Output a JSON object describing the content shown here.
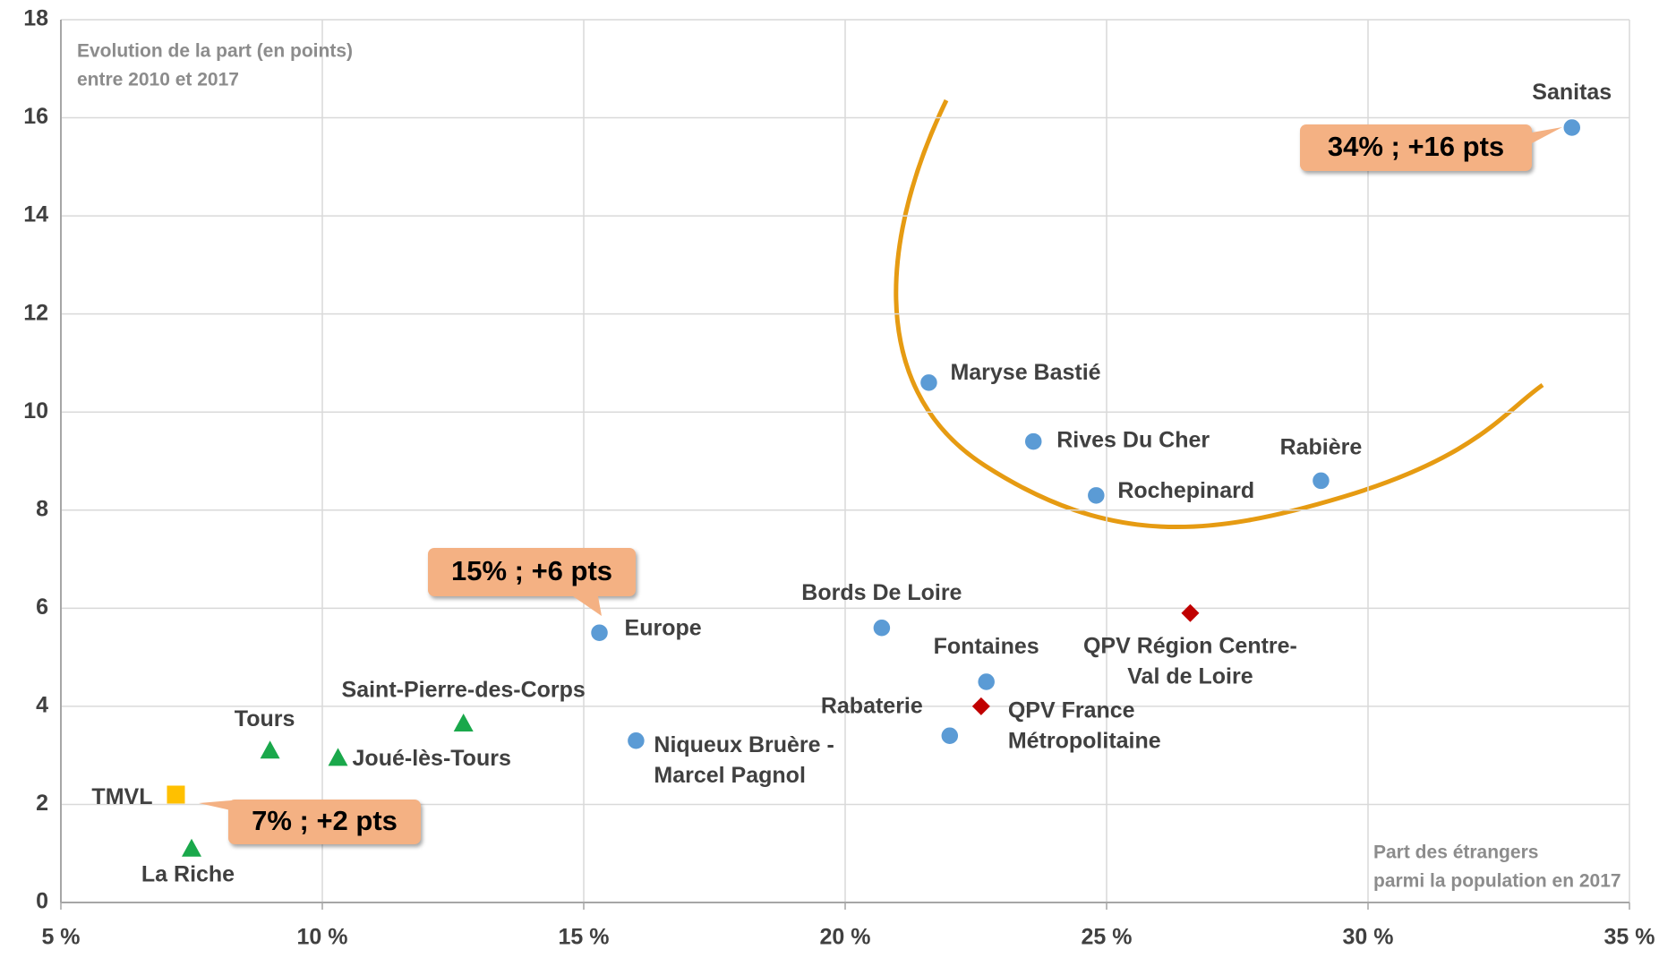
{
  "chart_data": {
    "type": "scatter",
    "y_axis_label": [
      "Evolution de la part (en points)",
      "entre 2010 et 2017"
    ],
    "x_axis_label": [
      "Part des étrangers",
      "parmi la population en 2017"
    ],
    "xlim": [
      5,
      35
    ],
    "ylim": [
      0,
      18
    ],
    "xticks": [
      {
        "value": 5,
        "label": "5 %"
      },
      {
        "value": 10,
        "label": "10 %"
      },
      {
        "value": 15,
        "label": "15 %"
      },
      {
        "value": 20,
        "label": "20 %"
      },
      {
        "value": 25,
        "label": "25 %"
      },
      {
        "value": 30,
        "label": "30 %"
      },
      {
        "value": 35,
        "label": "35 %"
      }
    ],
    "yticks": [
      0,
      2,
      4,
      6,
      8,
      10,
      12,
      14,
      16,
      18
    ],
    "grid": true,
    "series": [
      {
        "marker": "circle",
        "color": "#5b9bd5",
        "labels": [
          [
            "Sanitas"
          ],
          [
            "Maryse Bastié"
          ],
          [
            "Rives Du Cher"
          ],
          [
            "Rochepinard"
          ],
          [
            "Rabière"
          ],
          [
            "Europe"
          ],
          [
            "Bords De Loire"
          ],
          [
            "Fontaines"
          ],
          [
            "Rabaterie"
          ],
          [
            "Niqueux Bruère -",
            "Marcel Pagnol"
          ]
        ],
        "x": [
          33.9,
          21.6,
          23.6,
          24.8,
          29.1,
          15.3,
          20.7,
          22.7,
          22.0,
          16.0
        ],
        "values": [
          15.8,
          10.6,
          9.4,
          8.3,
          8.6,
          5.5,
          5.6,
          4.5,
          3.4,
          3.3
        ]
      },
      {
        "marker": "triangle",
        "color": "#1aa84b",
        "labels": [
          [
            "Tours"
          ],
          [
            "Saint-Pierre-des-Corps"
          ],
          [
            "Joué-lès-Tours"
          ],
          [
            "La Riche"
          ]
        ],
        "x": [
          9.0,
          12.7,
          10.3,
          7.5
        ],
        "values": [
          3.1,
          3.65,
          2.95,
          1.1
        ]
      },
      {
        "marker": "square",
        "color": "#ffc000",
        "labels": [
          [
            "TMVL"
          ]
        ],
        "x": [
          7.2
        ],
        "values": [
          2.2
        ]
      },
      {
        "marker": "diamond",
        "color": "#c00000",
        "labels": [
          [
            "QPV Région Centre-",
            "Val de Loire"
          ],
          [
            "QPV France",
            "Métropolitaine"
          ]
        ],
        "x": [
          26.6,
          22.6
        ],
        "values": [
          5.9,
          4.0
        ]
      }
    ],
    "annotations": [
      "34% ; +16 pts",
      "15% ; +6 pts",
      "7% ; +2 pts"
    ]
  }
}
